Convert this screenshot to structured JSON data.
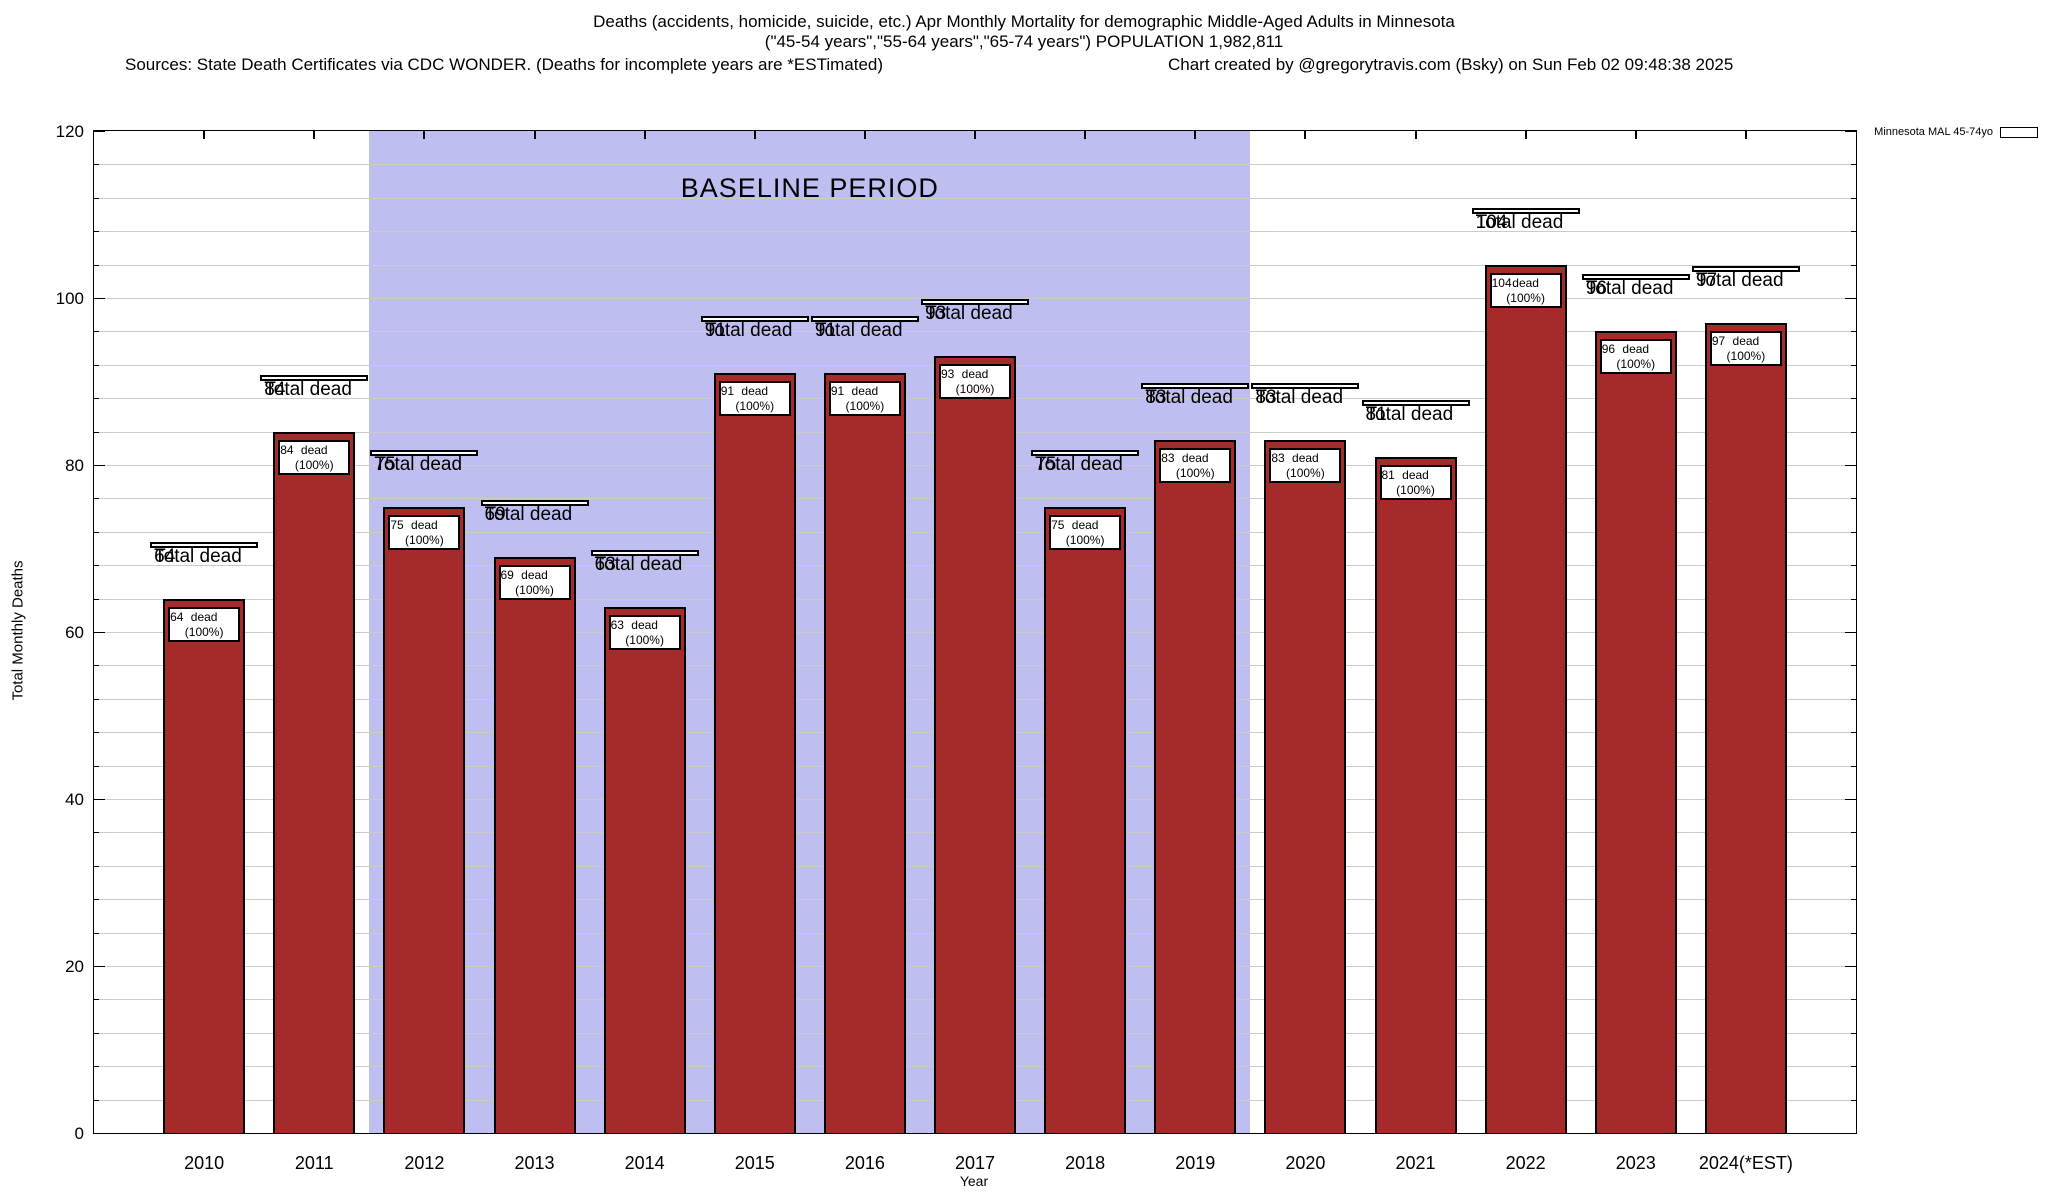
{
  "header": {
    "title_line1": "Deaths (accidents, homicide, suicide, etc.) Apr Monthly Mortality for demographic Middle-Aged Adults in Minnesota",
    "title_line2": "(\"45-54 years\",\"55-64 years\",\"65-74 years\") POPULATION 1,982,811",
    "sources_note": "Sources: State Death Certificates via CDC WONDER. (Deaths for incomplete years are *ESTimated)",
    "credit": "Chart created by @gregorytravis.com (Bsky) on Sun Feb 02 09:48:38 2025"
  },
  "legend": {
    "label": "Minnesota MAL 45-74yo",
    "swatch_color": "#A52A2A",
    "position": "top-right"
  },
  "chart_data": {
    "type": "bar",
    "title": "Deaths (accidents, homicide, suicide, etc.) Apr Monthly Mortality for demographic Middle-Aged Adults in Minnesota",
    "subtitle": "(\"45-54 years\",\"55-64 years\",\"65-74 years\") POPULATION 1,982,811",
    "xlabel": "Year",
    "ylabel": "Total Monthly Deaths",
    "ylim": [
      0,
      120
    ],
    "ytick_step": 20,
    "minor_gridline_step": 4,
    "grid": true,
    "legend_position": "top-right",
    "series_name": "Minnesota MAL 45-74yo",
    "categories": [
      "2010",
      "2011",
      "2012",
      "2013",
      "2014",
      "2015",
      "2016",
      "2017",
      "2018",
      "2019",
      "2020",
      "2021",
      "2022",
      "2023",
      "2024(*EST)"
    ],
    "values": [
      64,
      84,
      75,
      69,
      63,
      91,
      91,
      93,
      75,
      83,
      83,
      81,
      104,
      96,
      97
    ],
    "above_bar_label_line2": "Total dead",
    "in_bar_label_line2": "dead (100%)",
    "baseline_region": {
      "label": "BASELINE PERIOD",
      "from_category": "2012",
      "to_category": "2019",
      "fill_color": "#BEBEF0"
    }
  },
  "colors": {
    "bar": "#A52A2A",
    "baseline_fill": "#BEBEF0",
    "gridline": "#CCCCC2",
    "axis": "#000000",
    "background": "#FFFFFF"
  }
}
